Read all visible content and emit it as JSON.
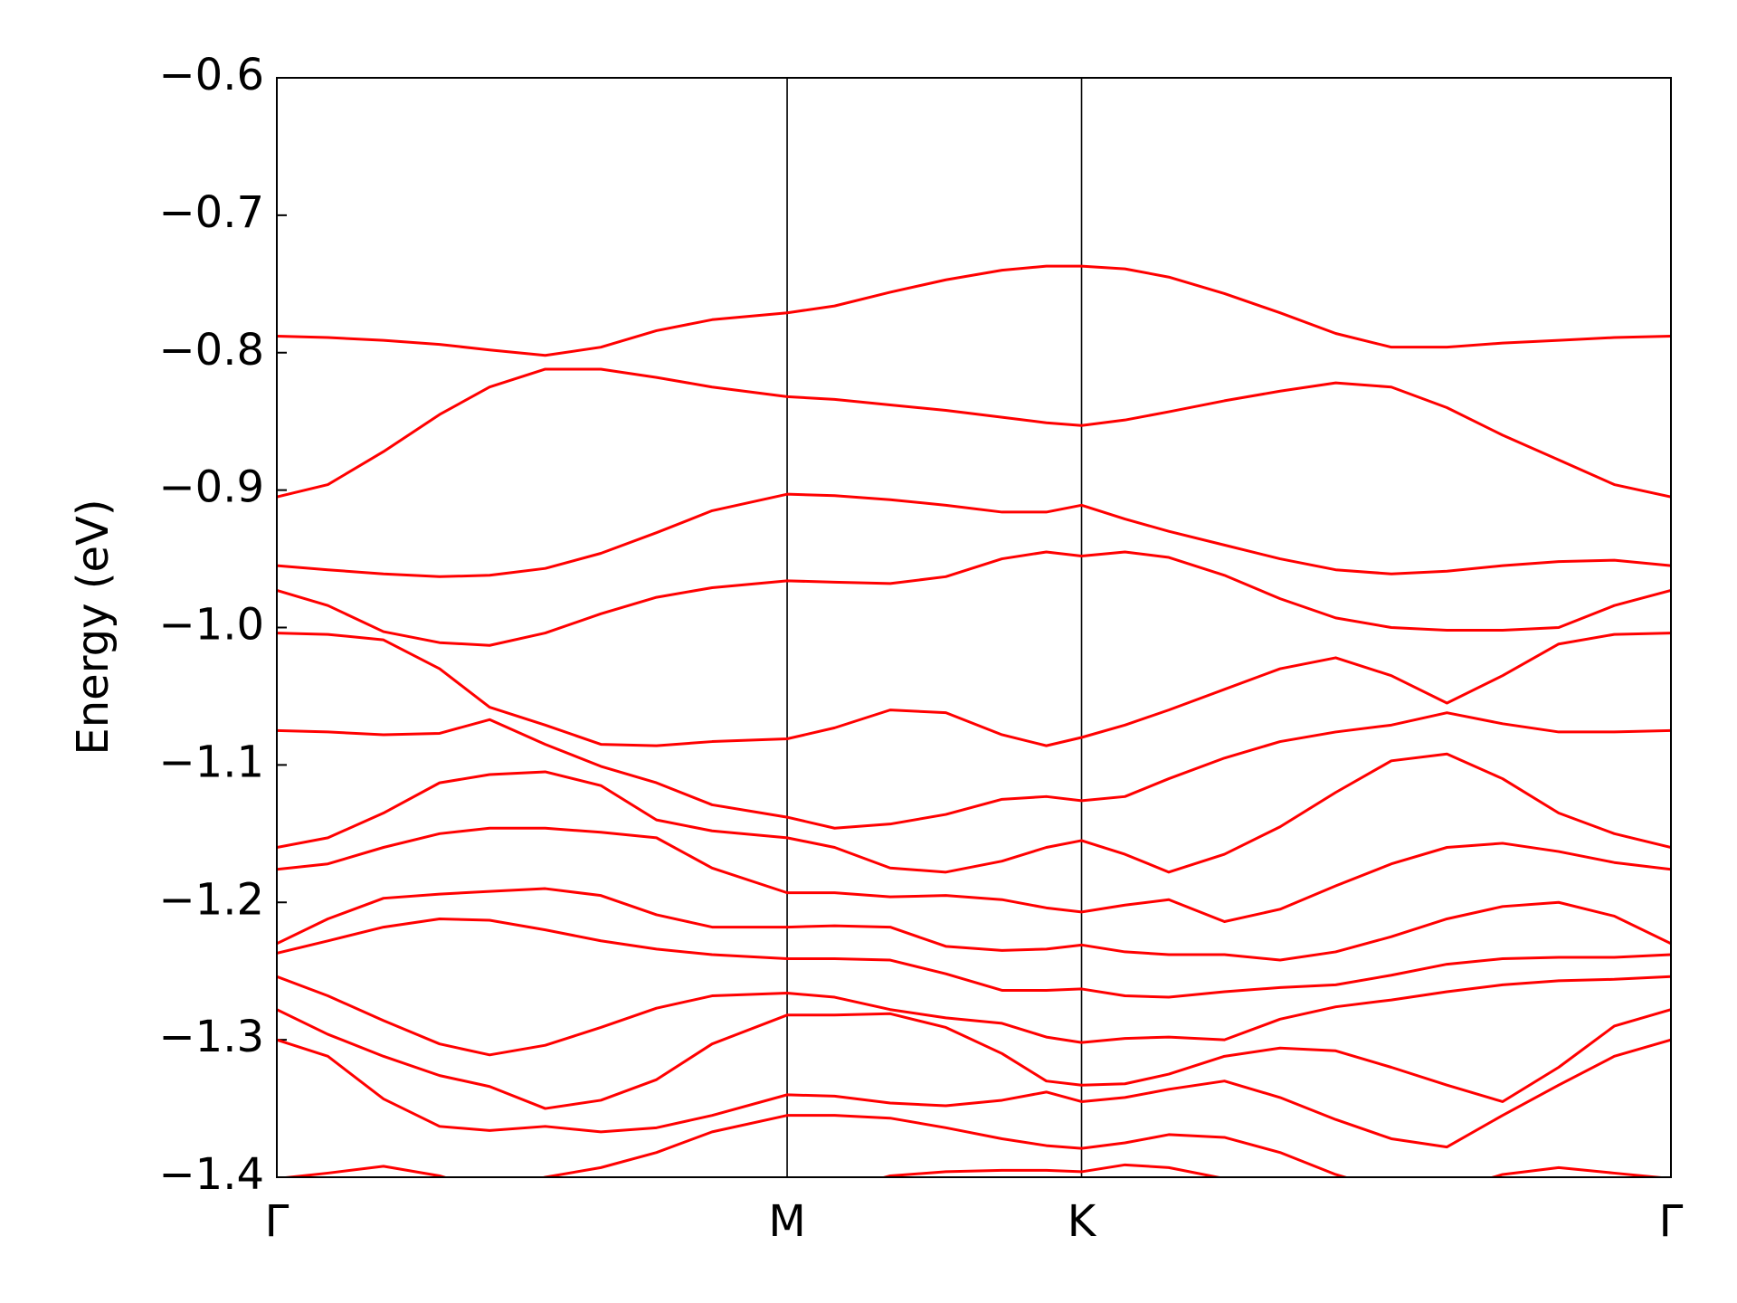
{
  "chart_data": {
    "type": "line",
    "ylabel": "Energy (eV)",
    "x": [
      0,
      0.1,
      0.209,
      0.319,
      0.417,
      0.526,
      0.635,
      0.744,
      0.853,
      1.0,
      1.093,
      1.202,
      1.311,
      1.421,
      1.508,
      1.577,
      1.662,
      1.748,
      1.857,
      1.966,
      2.075,
      2.184,
      2.293,
      2.402,
      2.512,
      2.621,
      2.732
    ],
    "xlim": [
      0,
      2.732
    ],
    "xticks": [
      {
        "value": 0,
        "label": "Γ"
      },
      {
        "value": 1.0,
        "label": "M"
      },
      {
        "value": 1.577,
        "label": "K"
      },
      {
        "value": 2.732,
        "label": "Γ"
      }
    ],
    "ylim": [
      -1.4,
      -0.6
    ],
    "yticks": [
      {
        "value": -1.4,
        "label": "−1.4"
      },
      {
        "value": -1.3,
        "label": "−1.3"
      },
      {
        "value": -1.2,
        "label": "−1.2"
      },
      {
        "value": -1.1,
        "label": "−1.1"
      },
      {
        "value": -1.0,
        "label": "−1.0"
      },
      {
        "value": -0.9,
        "label": "−0.9"
      },
      {
        "value": -0.8,
        "label": "−0.8"
      },
      {
        "value": -0.7,
        "label": "−0.7"
      },
      {
        "value": -0.6,
        "label": "−0.6"
      }
    ],
    "grid": true,
    "series": [
      {
        "color": "#ff0000",
        "values": [
          -0.788,
          -0.789,
          -0.791,
          -0.794,
          -0.798,
          -0.802,
          -0.796,
          -0.784,
          -0.776,
          -0.771,
          -0.766,
          -0.756,
          -0.747,
          -0.74,
          -0.737,
          -0.737,
          -0.739,
          -0.745,
          -0.757,
          -0.771,
          -0.786,
          -0.796,
          -0.796,
          -0.793,
          -0.791,
          -0.789,
          -0.788
        ]
      },
      {
        "color": "#ff0000",
        "values": [
          -0.905,
          -0.896,
          -0.872,
          -0.845,
          -0.825,
          -0.812,
          -0.812,
          -0.818,
          -0.825,
          -0.832,
          -0.834,
          -0.838,
          -0.842,
          -0.847,
          -0.851,
          -0.853,
          -0.849,
          -0.843,
          -0.835,
          -0.828,
          -0.822,
          -0.825,
          -0.84,
          -0.86,
          -0.878,
          -0.896,
          -0.905
        ]
      },
      {
        "color": "#ff0000",
        "values": [
          -0.955,
          -0.958,
          -0.961,
          -0.963,
          -0.962,
          -0.957,
          -0.946,
          -0.931,
          -0.915,
          -0.903,
          -0.904,
          -0.907,
          -0.911,
          -0.916,
          -0.916,
          -0.911,
          -0.921,
          -0.93,
          -0.94,
          -0.95,
          -0.958,
          -0.961,
          -0.959,
          -0.955,
          -0.952,
          -0.951,
          -0.955
        ]
      },
      {
        "color": "#ff0000",
        "values": [
          -0.973,
          -0.984,
          -1.003,
          -1.011,
          -1.013,
          -1.004,
          -0.99,
          -0.978,
          -0.971,
          -0.966,
          -0.967,
          -0.968,
          -0.963,
          -0.95,
          -0.945,
          -0.948,
          -0.945,
          -0.949,
          -0.962,
          -0.979,
          -0.993,
          -1.0,
          -1.002,
          -1.002,
          -1.0,
          -0.984,
          -0.973
        ]
      },
      {
        "color": "#ff0000",
        "values": [
          -1.004,
          -1.005,
          -1.009,
          -1.03,
          -1.058,
          -1.071,
          -1.085,
          -1.086,
          -1.083,
          -1.081,
          -1.073,
          -1.06,
          -1.062,
          -1.078,
          -1.086,
          -1.08,
          -1.071,
          -1.06,
          -1.045,
          -1.03,
          -1.022,
          -1.035,
          -1.055,
          -1.035,
          -1.012,
          -1.005,
          -1.004
        ]
      },
      {
        "color": "#ff0000",
        "values": [
          -1.075,
          -1.076,
          -1.078,
          -1.077,
          -1.067,
          -1.085,
          -1.101,
          -1.113,
          -1.129,
          -1.138,
          -1.146,
          -1.143,
          -1.136,
          -1.125,
          -1.123,
          -1.126,
          -1.123,
          -1.11,
          -1.095,
          -1.083,
          -1.076,
          -1.071,
          -1.062,
          -1.07,
          -1.076,
          -1.076,
          -1.075
        ]
      },
      {
        "color": "#ff0000",
        "values": [
          -1.16,
          -1.153,
          -1.135,
          -1.113,
          -1.107,
          -1.105,
          -1.115,
          -1.14,
          -1.148,
          -1.153,
          -1.16,
          -1.175,
          -1.178,
          -1.17,
          -1.16,
          -1.155,
          -1.165,
          -1.178,
          -1.165,
          -1.145,
          -1.12,
          -1.097,
          -1.092,
          -1.11,
          -1.135,
          -1.15,
          -1.16
        ]
      },
      {
        "color": "#ff0000",
        "values": [
          -1.176,
          -1.172,
          -1.16,
          -1.15,
          -1.146,
          -1.146,
          -1.149,
          -1.153,
          -1.175,
          -1.193,
          -1.193,
          -1.196,
          -1.195,
          -1.198,
          -1.204,
          -1.207,
          -1.202,
          -1.198,
          -1.214,
          -1.205,
          -1.188,
          -1.172,
          -1.16,
          -1.157,
          -1.163,
          -1.171,
          -1.176
        ]
      },
      {
        "color": "#ff0000",
        "values": [
          -1.23,
          -1.212,
          -1.197,
          -1.194,
          -1.192,
          -1.19,
          -1.195,
          -1.209,
          -1.218,
          -1.218,
          -1.217,
          -1.218,
          -1.232,
          -1.235,
          -1.234,
          -1.231,
          -1.236,
          -1.238,
          -1.238,
          -1.242,
          -1.236,
          -1.225,
          -1.212,
          -1.203,
          -1.2,
          -1.21,
          -1.23
        ]
      },
      {
        "color": "#ff0000",
        "values": [
          -1.237,
          -1.228,
          -1.218,
          -1.212,
          -1.213,
          -1.22,
          -1.228,
          -1.234,
          -1.238,
          -1.241,
          -1.241,
          -1.242,
          -1.252,
          -1.264,
          -1.264,
          -1.263,
          -1.268,
          -1.269,
          -1.265,
          -1.262,
          -1.26,
          -1.253,
          -1.245,
          -1.241,
          -1.24,
          -1.24,
          -1.238
        ]
      },
      {
        "color": "#ff0000",
        "values": [
          -1.254,
          -1.268,
          -1.286,
          -1.303,
          -1.311,
          -1.304,
          -1.291,
          -1.277,
          -1.268,
          -1.266,
          -1.269,
          -1.278,
          -1.284,
          -1.288,
          -1.298,
          -1.302,
          -1.299,
          -1.298,
          -1.3,
          -1.285,
          -1.276,
          -1.271,
          -1.265,
          -1.26,
          -1.257,
          -1.256,
          -1.254
        ]
      },
      {
        "color": "#ff0000",
        "values": [
          -1.278,
          -1.296,
          -1.312,
          -1.326,
          -1.334,
          -1.35,
          -1.344,
          -1.329,
          -1.303,
          -1.282,
          -1.282,
          -1.281,
          -1.291,
          -1.31,
          -1.33,
          -1.333,
          -1.332,
          -1.325,
          -1.312,
          -1.306,
          -1.308,
          -1.32,
          -1.333,
          -1.345,
          -1.32,
          -1.29,
          -1.278
        ]
      },
      {
        "color": "#ff0000",
        "values": [
          -1.3,
          -1.312,
          -1.343,
          -1.363,
          -1.366,
          -1.363,
          -1.367,
          -1.364,
          -1.355,
          -1.34,
          -1.341,
          -1.346,
          -1.348,
          -1.344,
          -1.338,
          -1.345,
          -1.342,
          -1.336,
          -1.33,
          -1.342,
          -1.358,
          -1.372,
          -1.378,
          -1.355,
          -1.333,
          -1.312,
          -1.3
        ]
      },
      {
        "color": "#ff0000",
        "values": [
          -1.401,
          -1.397,
          -1.392,
          -1.399,
          -1.41,
          -1.4,
          -1.393,
          -1.382,
          -1.367,
          -1.355,
          -1.355,
          -1.357,
          -1.364,
          -1.372,
          -1.377,
          -1.379,
          -1.375,
          -1.369,
          -1.371,
          -1.382,
          -1.398,
          -1.41,
          -1.41,
          -1.398,
          -1.393,
          -1.397,
          -1.401
        ]
      },
      {
        "color": "#ff0000",
        "values": [
          null,
          null,
          null,
          null,
          null,
          null,
          null,
          null,
          null,
          null,
          -1.41,
          -1.399,
          -1.396,
          -1.395,
          -1.395,
          -1.396,
          -1.391,
          -1.393,
          -1.401,
          -1.42,
          null,
          null,
          null,
          null,
          null,
          null,
          null
        ]
      }
    ]
  }
}
